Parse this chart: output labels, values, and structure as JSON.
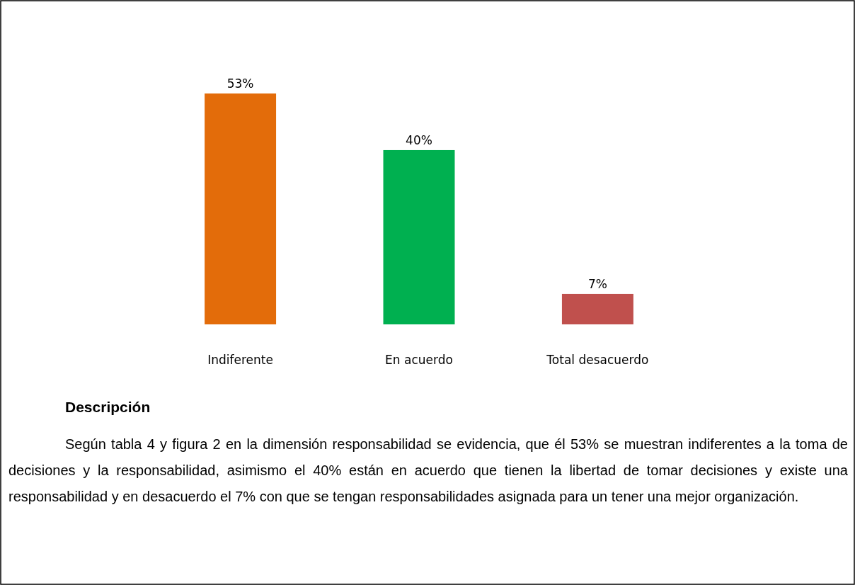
{
  "chart_data": {
    "type": "bar",
    "categories": [
      "Indiferente",
      "En acuerdo",
      "Total desacuerdo"
    ],
    "values": [
      53,
      40,
      7
    ],
    "colors": [
      "#e36c0a",
      "#00b050",
      "#c0504d"
    ],
    "value_labels": [
      "53%",
      "40%",
      "7%"
    ],
    "annotations": [
      "Descripción",
      "Según tabla 4 y figura 2 en la dimensión responsabilidad se evidencia, que él 53% se muestran indiferentes a la toma de decisiones y la responsabilidad, asimismo el 40% están en acuerdo que tienen la libertad de tomar decisiones y existe una responsabilidad y en desacuerdo el 7% con que se tengan responsabilidades asignada para un tener una mejor organización."
    ]
  }
}
